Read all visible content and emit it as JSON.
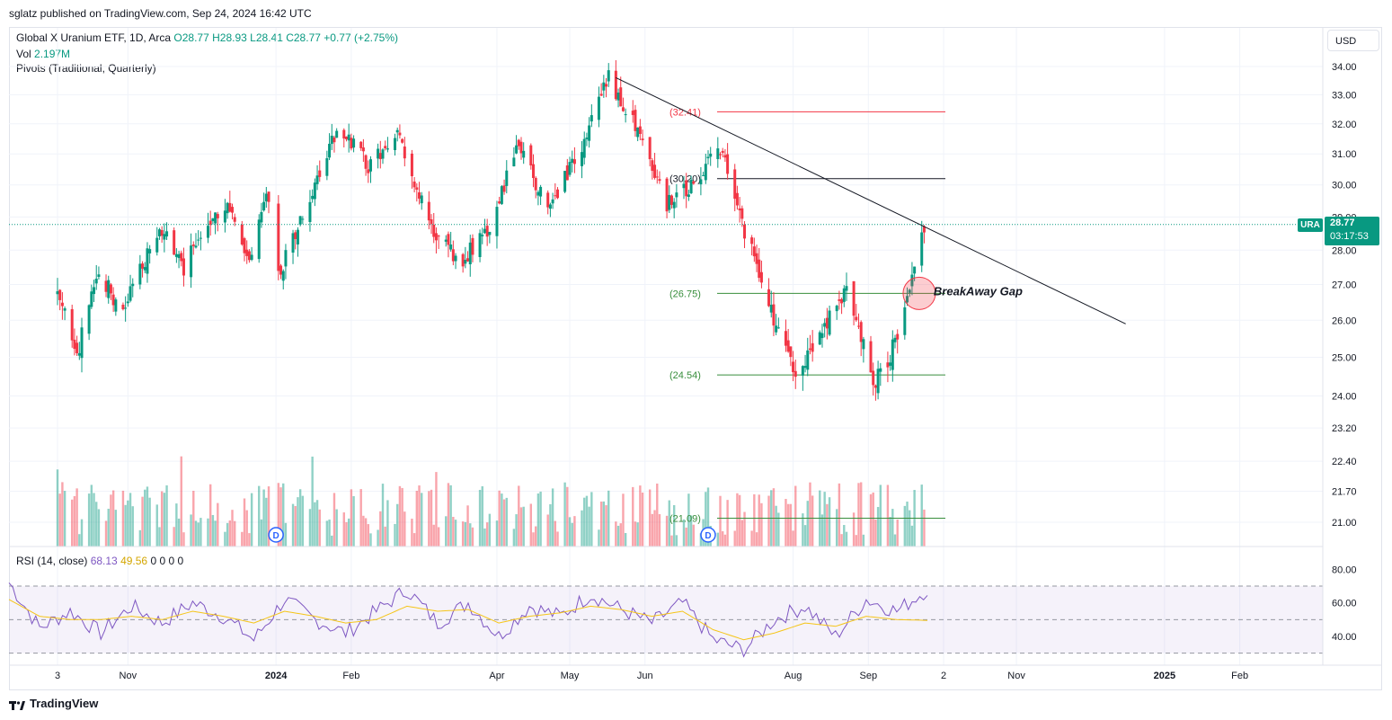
{
  "header": {
    "published": "sglatz published on TradingView.com, Sep 24, 2024 16:42 UTC",
    "symbol_line": "Global X Uranium ETF, 1D, Arca",
    "ohlc": {
      "o": "O28.77",
      "h": "H28.93",
      "l": "L28.41",
      "c": "C28.77",
      "chg": "+0.77 (+2.75%)"
    },
    "vol_label": "Vol",
    "vol_value": "2.197M",
    "pivots_label": "Pivots (Traditional, Quarterly)",
    "currency_button": "USD"
  },
  "last_price": {
    "symbol": "URA",
    "value": "28.77",
    "countdown": "03:17:53"
  },
  "colors": {
    "up": "#089981",
    "down": "#f23645",
    "rsi_line": "#7e57c2",
    "rsi_ma": "#f5c518",
    "trendline": "#131722"
  },
  "chart_data": [
    {
      "type": "candlestick",
      "title": "Global X Uranium ETF, 1D, Arca",
      "y_axis_ticks": [
        "34.00",
        "33.00",
        "32.00",
        "31.00",
        "30.00",
        "29.00",
        "28.00",
        "27.00",
        "26.00",
        "25.00",
        "24.00",
        "23.20",
        "22.40",
        "21.70",
        "21.00"
      ],
      "ylim": [
        20.4,
        34.6
      ],
      "x_axis_ticks": [
        "3",
        "Nov",
        "2024",
        "Feb",
        "Apr",
        "May",
        "Jun",
        "Aug",
        "Sep",
        "2",
        "Nov",
        "2025",
        "Feb"
      ],
      "log_scale": true,
      "grid": true,
      "close_series_segments": [
        {
          "from": "2023-10-03",
          "to": "2023-12-29",
          "approx_close": [
            26.6,
            25.2,
            27.5,
            26.0,
            27.6,
            28.6,
            27.4,
            28.9,
            29.4,
            27.6,
            29.7
          ]
        },
        {
          "from": "2024-01-02",
          "to": "2024-05-17",
          "approx_close": [
            27.2,
            29.4,
            32.0,
            30.6,
            31.6,
            28.8,
            27.6,
            28.6,
            31.3,
            29.2,
            31.0,
            33.6
          ]
        },
        {
          "from": "2024-05-20",
          "to": "2024-09-24",
          "approx_close": [
            33.1,
            31.5,
            29.4,
            30.0,
            31.3,
            28.6,
            26.3,
            24.4,
            25.6,
            26.9,
            24.3,
            25.5,
            28.77
          ]
        }
      ],
      "pivot_levels": [
        {
          "label": "(32.41)",
          "value": 32.41
        },
        {
          "label": "(30.20)",
          "value": 30.2
        },
        {
          "label": "(26.75)",
          "value": 26.75
        },
        {
          "label": "(24.54)",
          "value": 24.54
        },
        {
          "label": "(21.09)",
          "value": 21.09
        }
      ],
      "trendline": {
        "from": {
          "date": "2024-05-20",
          "price": 33.6
        },
        "to": {
          "date": "2024-12-16",
          "price": 25.9
        }
      },
      "annotations": [
        {
          "text": "BreakAway Gap",
          "price": 26.75,
          "date": "2024-09-19"
        }
      ],
      "dividend_markers": [
        "D",
        "D"
      ],
      "volume_series": {
        "name": "Vol",
        "last": "2.197M"
      }
    },
    {
      "type": "line",
      "title": "RSI (14, close)",
      "values_text": {
        "rsi": "68.13",
        "ma": "49.56",
        "extra": [
          "0",
          "0",
          "0",
          "0"
        ]
      },
      "y_axis_ticks": [
        "80.00",
        "60.00",
        "40.00"
      ],
      "ylim": [
        25,
        85
      ],
      "bands": [
        70,
        50,
        30
      ],
      "series": [
        {
          "name": "RSI",
          "approx_values": [
            72,
            45,
            55,
            42,
            58,
            48,
            60,
            52,
            38,
            62,
            50,
            42,
            55,
            68,
            48,
            60,
            40,
            58,
            52,
            65,
            56,
            48,
            60,
            38,
            32,
            50,
            58,
            40,
            62,
            55,
            68.13
          ]
        },
        {
          "name": "RSI MA",
          "approx_values": [
            62,
            52,
            50,
            50,
            52,
            50,
            55,
            52,
            48,
            55,
            52,
            48,
            50,
            58,
            55,
            56,
            48,
            52,
            54,
            58,
            56,
            52,
            55,
            44,
            38,
            42,
            48,
            46,
            52,
            50,
            49.56
          ]
        }
      ]
    }
  ]
}
